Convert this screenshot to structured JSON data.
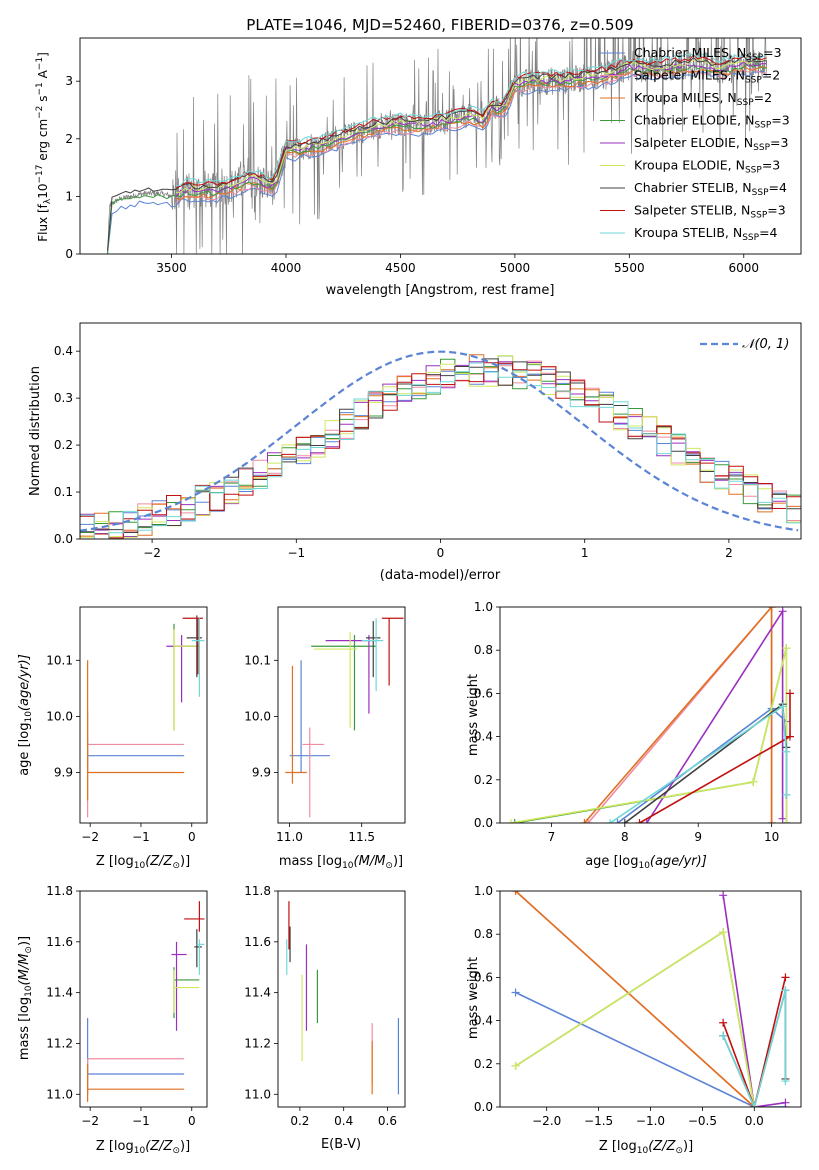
{
  "page_title": "PLATE=1046, MJD=52460, FIBERID=0376, z=0.509",
  "colors": {
    "chabrier_miles": "#5b84d6",
    "salpeter_miles": "#f08ca0",
    "kroupa_miles": "#e07020",
    "chabrier_elodie": "#3a9a3a",
    "salpeter_elodie": "#9b30c0",
    "kroupa_elodie": "#d0e860",
    "chabrier_stelib": "#404040",
    "salpeter_stelib": "#c01010",
    "kroupa_stelib": "#70d8d8",
    "data": "#808080",
    "normal": "#5b84d6"
  },
  "labels": {
    "p1_ylabel_pre": "Flux [f",
    "p1_ylabel_sub": "λ",
    "p1_ylabel_post": "10",
    "p1_ylabel_exp1": "−17",
    "p1_ylabel_mid": " erg cm",
    "p1_ylabel_exp2": "−2",
    "p1_ylabel_mid2": " s",
    "p1_ylabel_exp3": "−1",
    "p1_ylabel_mid3": " A",
    "p1_ylabel_exp4": "−1",
    "p1_ylabel_end": "]",
    "p1_xlabel": "wavelength [Angstrom, rest frame]",
    "p2_xlabel": "(data-model)/error",
    "p2_ylabel": "Normed distribution",
    "p2_legend": "𝒩(0, 1)",
    "z_xlabel_pre": "Z [log",
    "z_xlabel_sub": "10",
    "z_xlabel_post": "(Z/Z",
    "z_xlabel_sun": "⊙",
    "z_xlabel_end": ")]",
    "mass_xlabel_pre": "mass [log",
    "mass_xlabel_sub": "10",
    "mass_xlabel_post": "(M/M",
    "mass_xlabel_sun": "⊙",
    "mass_xlabel_end": ")]",
    "age_ylabel_pre": "age  [log",
    "age_ylabel_sub": "10",
    "age_ylabel_post": "(age/yr)]",
    "age_xlabel_pre": "age  [log",
    "age_xlabel_sub": "10",
    "age_xlabel_post": "(age/yr)]",
    "mass_ylabel_pre": "mass [log",
    "mass_ylabel_sub": "10",
    "mass_ylabel_post": "(M/M",
    "mass_ylabel_sun": "⊙",
    "mass_ylabel_end": ")]",
    "ebv_xlabel": "E(B-V)",
    "mw_ylabel": "mass weight"
  },
  "chart_data": [
    {
      "type": "line",
      "title": "PLATE=1046, MJD=52460, FIBERID=0376, z=0.509",
      "xlabel": "wavelength [Angstrom, rest frame]",
      "xlim": [
        3100,
        6250
      ],
      "ylim": [
        0,
        3.75
      ],
      "xticks": [
        3500,
        4000,
        4500,
        5000,
        5500,
        6000
      ],
      "yticks": [
        0,
        1,
        2,
        3
      ],
      "legend": [
        {
          "key": "chabrier_miles",
          "pre": "Chabrier MILES, N",
          "post": "=3"
        },
        {
          "key": "salpeter_miles",
          "pre": "Salpeter MILES, N",
          "post": "=2"
        },
        {
          "key": "kroupa_miles",
          "pre": "Kroupa MILES, N",
          "post": "=2"
        },
        {
          "key": "chabrier_elodie",
          "pre": "Chabrier ELODIE, N",
          "post": "=3"
        },
        {
          "key": "salpeter_elodie",
          "pre": "Salpeter ELODIE, N",
          "post": "=3"
        },
        {
          "key": "kroupa_elodie",
          "pre": "Kroupa ELODIE, N",
          "post": "=3"
        },
        {
          "key": "chabrier_stelib",
          "pre": "Chabrier STELIB, N",
          "post": "=4"
        },
        {
          "key": "salpeter_stelib",
          "pre": "Salpeter STELIB, N",
          "post": "=3"
        },
        {
          "key": "kroupa_stelib",
          "pre": "Kroupa STELIB, N",
          "post": "=4"
        }
      ],
      "legend_sub": "SSP",
      "continuum": [
        [
          3220,
          0.0
        ],
        [
          3230,
          0.85
        ],
        [
          3270,
          0.95
        ],
        [
          3320,
          1.0
        ],
        [
          3380,
          1.05
        ],
        [
          3450,
          1.05
        ],
        [
          3510,
          1.0
        ],
        [
          3550,
          1.1
        ],
        [
          3620,
          1.1
        ],
        [
          3700,
          1.1
        ],
        [
          3780,
          1.2
        ],
        [
          3850,
          1.3
        ],
        [
          3950,
          1.15
        ],
        [
          4000,
          1.8
        ],
        [
          4100,
          1.85
        ],
        [
          4200,
          1.95
        ],
        [
          4300,
          2.1
        ],
        [
          4400,
          2.2
        ],
        [
          4500,
          2.25
        ],
        [
          4600,
          2.25
        ],
        [
          4700,
          2.3
        ],
        [
          4800,
          2.4
        ],
        [
          4860,
          2.3
        ],
        [
          4900,
          2.55
        ],
        [
          4950,
          2.5
        ],
        [
          5000,
          2.95
        ],
        [
          5100,
          3.0
        ],
        [
          5200,
          3.0
        ],
        [
          5300,
          3.05
        ],
        [
          5400,
          3.1
        ],
        [
          5500,
          3.25
        ],
        [
          5600,
          3.2
        ],
        [
          5700,
          3.25
        ],
        [
          5800,
          3.3
        ],
        [
          5900,
          3.2
        ],
        [
          6000,
          3.3
        ],
        [
          6100,
          3.3
        ]
      ]
    },
    {
      "type": "line",
      "xlabel": "(data-model)/error",
      "ylabel": "Normed distribution",
      "xlim": [
        -2.5,
        2.5
      ],
      "ylim": [
        0,
        0.46
      ],
      "xticks": [
        -2,
        -1,
        0,
        1,
        2
      ],
      "yticks": [
        0.0,
        0.1,
        0.2,
        0.3,
        0.4
      ],
      "legend": "top-right",
      "series": [
        {
          "name": "𝒩(0, 1)",
          "mean": 0,
          "sigma": 1
        }
      ]
    },
    {
      "type": "scatter",
      "xlabel": "Z [log10(Z/Z⊙)]",
      "ylabel": "age  [log10(age/yr)]",
      "xlim": [
        -2.2,
        0.3
      ],
      "ylim": [
        9.81,
        10.195
      ],
      "xticks": [
        -2,
        -1,
        0
      ],
      "yticks": [
        9.9,
        10.0,
        10.1
      ],
      "series": [
        {
          "key": "chabrier_miles",
          "x": -2.05,
          "xerr": [
            0,
            1.9
          ],
          "y": 9.93,
          "yerr": [
            0.03,
            0.03
          ]
        },
        {
          "key": "salpeter_miles",
          "x": -2.05,
          "xerr": [
            0,
            1.9
          ],
          "y": 9.95,
          "yerr": [
            0.13,
            0.06
          ]
        },
        {
          "key": "kroupa_miles",
          "x": -2.05,
          "xerr": [
            0,
            1.9
          ],
          "y": 9.9,
          "yerr": [
            0.05,
            0.2
          ]
        },
        {
          "key": "chabrier_elodie",
          "x": -0.35,
          "xerr": [
            0,
            0.5
          ],
          "y": 10.125,
          "yerr": [
            0.15,
            0.04
          ]
        },
        {
          "key": "salpeter_elodie",
          "x": -0.2,
          "xerr": [
            0.3,
            0.3
          ],
          "y": 10.125,
          "yerr": [
            0.1,
            0.02
          ]
        },
        {
          "key": "kroupa_elodie",
          "x": -0.35,
          "xerr": [
            0,
            0.5
          ],
          "y": 10.125,
          "yerr": [
            0.15,
            0.03
          ]
        },
        {
          "key": "chabrier_stelib",
          "x": 0.1,
          "xerr": [
            0.2,
            0.1
          ],
          "y": 10.14,
          "yerr": [
            0.07,
            0.04
          ]
        },
        {
          "key": "salpeter_stelib",
          "x": 0.12,
          "xerr": [
            0.3,
            0.1
          ],
          "y": 10.175,
          "yerr": [
            0.1,
            0.0
          ]
        },
        {
          "key": "kroupa_stelib",
          "x": 0.15,
          "xerr": [
            0.15,
            0.1
          ],
          "y": 10.135,
          "yerr": [
            0.1,
            0.04
          ]
        }
      ]
    },
    {
      "type": "scatter",
      "xlabel": "mass [log10(M/M⊙)]",
      "ylabel": "",
      "xlim": [
        10.92,
        11.8
      ],
      "ylim": [
        9.81,
        10.195
      ],
      "xticks": [
        11.0,
        11.5
      ],
      "yticks": [
        9.9,
        10.0,
        10.1
      ],
      "series": [
        {
          "key": "chabrier_miles",
          "x": 11.08,
          "xerr": [
            0.08,
            0.2
          ],
          "y": 9.93,
          "yerr": [
            0.03,
            0.17
          ]
        },
        {
          "key": "salpeter_miles",
          "x": 11.14,
          "xerr": [
            0.05,
            0.1
          ],
          "y": 9.95,
          "yerr": [
            0.13,
            0.03
          ]
        },
        {
          "key": "kroupa_miles",
          "x": 11.02,
          "xerr": [
            0.05,
            0.1
          ],
          "y": 9.9,
          "yerr": [
            0.02,
            0.19
          ]
        },
        {
          "key": "chabrier_elodie",
          "x": 11.45,
          "xerr": [
            0.3,
            0.15
          ],
          "y": 10.125,
          "yerr": [
            0.15,
            0.02
          ]
        },
        {
          "key": "salpeter_elodie",
          "x": 11.55,
          "xerr": [
            0.3,
            0.05
          ],
          "y": 10.135,
          "yerr": [
            0.13,
            0.01
          ]
        },
        {
          "key": "kroupa_elodie",
          "x": 11.42,
          "xerr": [
            0.25,
            0.05
          ],
          "y": 10.12,
          "yerr": [
            0.14,
            0.03
          ]
        },
        {
          "key": "chabrier_stelib",
          "x": 11.58,
          "xerr": [
            0.05,
            0.05
          ],
          "y": 10.14,
          "yerr": [
            0.07,
            0.03
          ]
        },
        {
          "key": "salpeter_stelib",
          "x": 11.69,
          "xerr": [
            0.05,
            0.1
          ],
          "y": 10.175,
          "yerr": [
            0.12,
            0.0
          ]
        },
        {
          "key": "kroupa_stelib",
          "x": 11.6,
          "xerr": [
            0.1,
            0.05
          ],
          "y": 10.135,
          "yerr": [
            0.09,
            0.04
          ]
        }
      ]
    },
    {
      "type": "line",
      "xlabel": "age  [log10(age/yr)]",
      "ylabel": "mass weight",
      "xlim": [
        6.3,
        10.4
      ],
      "ylim": [
        0,
        1.0
      ],
      "xticks": [
        7,
        8,
        9,
        10
      ],
      "yticks": [
        0.0,
        0.2,
        0.4,
        0.6,
        0.8,
        1.0
      ],
      "series": [
        {
          "key": "chabrier_miles",
          "x": [
            7.9,
            10.0,
            10.2,
            10.2
          ],
          "y": [
            0.0,
            0.53,
            0.47,
            0.0
          ]
        },
        {
          "key": "salpeter_miles",
          "x": [
            7.5,
            10.0,
            10.0
          ],
          "y": [
            0.0,
            1.0,
            0.0
          ]
        },
        {
          "key": "kroupa_miles",
          "x": [
            7.45,
            10.0,
            10.0
          ],
          "y": [
            0.0,
            1.0,
            0.0
          ]
        },
        {
          "key": "chabrier_elodie",
          "x": [
            6.5,
            9.75,
            10.2,
            10.2
          ],
          "y": [
            0.0,
            0.19,
            0.81,
            0.0
          ]
        },
        {
          "key": "salpeter_elodie",
          "x": [
            8.3,
            10.15,
            10.15
          ],
          "y": [
            0.0,
            0.98,
            0.02
          ]
        },
        {
          "key": "kroupa_elodie",
          "x": [
            6.45,
            9.75,
            10.2,
            10.2
          ],
          "y": [
            0.0,
            0.19,
            0.81,
            0.0
          ]
        },
        {
          "key": "chabrier_stelib",
          "x": [
            8.0,
            10.15,
            10.2,
            10.2
          ],
          "y": [
            0.0,
            0.55,
            0.35,
            0.13
          ]
        },
        {
          "key": "salpeter_stelib",
          "x": [
            8.2,
            10.25,
            10.25
          ],
          "y": [
            0.0,
            0.4,
            0.6
          ]
        },
        {
          "key": "kroupa_stelib",
          "x": [
            7.8,
            10.15,
            10.2,
            10.2
          ],
          "y": [
            0.0,
            0.54,
            0.33,
            0.13
          ]
        }
      ]
    },
    {
      "type": "scatter",
      "xlabel": "Z [log10(Z/Z⊙)]",
      "ylabel": "mass [log10(M/M⊙)]",
      "xlim": [
        -2.2,
        0.3
      ],
      "ylim": [
        10.95,
        11.8
      ],
      "xticks": [
        -2,
        -1,
        0
      ],
      "yticks": [
        11.0,
        11.2,
        11.4,
        11.6,
        11.8
      ],
      "series": [
        {
          "key": "chabrier_miles",
          "x": -2.05,
          "xerr": [
            0,
            1.9
          ],
          "y": 11.08,
          "yerr": [
            0.08,
            0.22
          ]
        },
        {
          "key": "salpeter_miles",
          "x": -2.05,
          "xerr": [
            0,
            1.9
          ],
          "y": 11.14,
          "yerr": [
            0.1,
            0.0
          ]
        },
        {
          "key": "kroupa_miles",
          "x": -2.05,
          "xerr": [
            0,
            1.9
          ],
          "y": 11.02,
          "yerr": [
            0.05,
            0.1
          ]
        },
        {
          "key": "chabrier_elodie",
          "x": -0.35,
          "xerr": [
            0,
            0.5
          ],
          "y": 11.45,
          "yerr": [
            0.15,
            0.05
          ]
        },
        {
          "key": "salpeter_elodie",
          "x": -0.3,
          "xerr": [
            0.1,
            0.2
          ],
          "y": 11.55,
          "yerr": [
            0.3,
            0.05
          ]
        },
        {
          "key": "kroupa_elodie",
          "x": -0.35,
          "xerr": [
            0,
            0.5
          ],
          "y": 11.42,
          "yerr": [
            0.1,
            0.07
          ]
        },
        {
          "key": "chabrier_stelib",
          "x": 0.1,
          "xerr": [
            0.05,
            0.1
          ],
          "y": 11.58,
          "yerr": [
            0.08,
            0.07
          ]
        },
        {
          "key": "salpeter_stelib",
          "x": 0.15,
          "xerr": [
            0.3,
            0.1
          ],
          "y": 11.69,
          "yerr": [
            0.05,
            0.07
          ]
        },
        {
          "key": "kroupa_stelib",
          "x": 0.15,
          "xerr": [
            0.05,
            0.1
          ],
          "y": 11.59,
          "yerr": [
            0.12,
            0.02
          ]
        }
      ]
    },
    {
      "type": "scatter",
      "xlabel": "E(B-V)",
      "ylabel": "",
      "xlim": [
        0.1,
        0.68
      ],
      "ylim": [
        10.95,
        11.8
      ],
      "xticks": [
        0.2,
        0.4,
        0.6
      ],
      "yticks": [
        11.0,
        11.2,
        11.4,
        11.6,
        11.8
      ],
      "series": [
        {
          "key": "chabrier_miles",
          "x": 0.65,
          "y": 11.08,
          "yerr": [
            0.08,
            0.22
          ]
        },
        {
          "key": "salpeter_miles",
          "x": 0.53,
          "y": 11.14,
          "yerr": [
            0.1,
            0.14
          ]
        },
        {
          "key": "kroupa_miles",
          "x": 0.53,
          "y": 11.02,
          "yerr": [
            0.02,
            0.19
          ]
        },
        {
          "key": "chabrier_elodie",
          "x": 0.28,
          "y": 11.38,
          "yerr": [
            0.1,
            0.11
          ]
        },
        {
          "key": "salpeter_elodie",
          "x": 0.23,
          "y": 11.45,
          "yerr": [
            0.2,
            0.14
          ]
        },
        {
          "key": "kroupa_elodie",
          "x": 0.21,
          "y": 11.3,
          "yerr": [
            0.17,
            0.17
          ]
        },
        {
          "key": "chabrier_stelib",
          "x": 0.155,
          "y": 11.58,
          "yerr": [
            0.06,
            0.08
          ]
        },
        {
          "key": "salpeter_stelib",
          "x": 0.15,
          "y": 11.66,
          "yerr": [
            0.09,
            0.1
          ]
        },
        {
          "key": "kroupa_stelib",
          "x": 0.14,
          "y": 11.55,
          "yerr": [
            0.08,
            0.06
          ]
        }
      ]
    },
    {
      "type": "line",
      "xlabel": "Z [log10(Z/Z⊙)]",
      "ylabel": "mass weight",
      "xlim": [
        -2.45,
        0.45
      ],
      "ylim": [
        0,
        1.0
      ],
      "xticks": [
        -2.0,
        -1.5,
        -1.0,
        -0.5,
        0.0
      ],
      "yticks": [
        0.0,
        0.2,
        0.4,
        0.6,
        0.8,
        1.0
      ],
      "series": [
        {
          "key": "chabrier_miles",
          "x": [
            -2.3,
            0.0,
            0.3
          ],
          "y": [
            0.53,
            0.0,
            0.0
          ]
        },
        {
          "key": "salpeter_miles",
          "x": [
            -2.3,
            0.0
          ],
          "y": [
            1.0,
            0.0
          ]
        },
        {
          "key": "kroupa_miles",
          "x": [
            -2.3,
            0.0
          ],
          "y": [
            1.0,
            0.0
          ]
        },
        {
          "key": "chabrier_elodie",
          "x": [
            -2.3,
            -0.3,
            0.0
          ],
          "y": [
            0.19,
            0.81,
            0.0
          ]
        },
        {
          "key": "salpeter_elodie",
          "x": [
            -0.3,
            0.0,
            0.3
          ],
          "y": [
            0.98,
            0.0,
            0.02
          ]
        },
        {
          "key": "kroupa_elodie",
          "x": [
            -2.3,
            -0.3,
            0.0
          ],
          "y": [
            0.19,
            0.81,
            0.0
          ]
        },
        {
          "key": "chabrier_stelib",
          "x": [
            -0.3,
            0.0,
            0.3,
            0.3
          ],
          "y": [
            0.33,
            0.0,
            0.54,
            0.13
          ]
        },
        {
          "key": "salpeter_stelib",
          "x": [
            -0.3,
            0.0,
            0.3
          ],
          "y": [
            0.39,
            0.0,
            0.6
          ]
        },
        {
          "key": "kroupa_stelib",
          "x": [
            -0.3,
            0.0,
            0.3,
            0.3
          ],
          "y": [
            0.33,
            0.0,
            0.54,
            0.12
          ]
        }
      ]
    }
  ]
}
